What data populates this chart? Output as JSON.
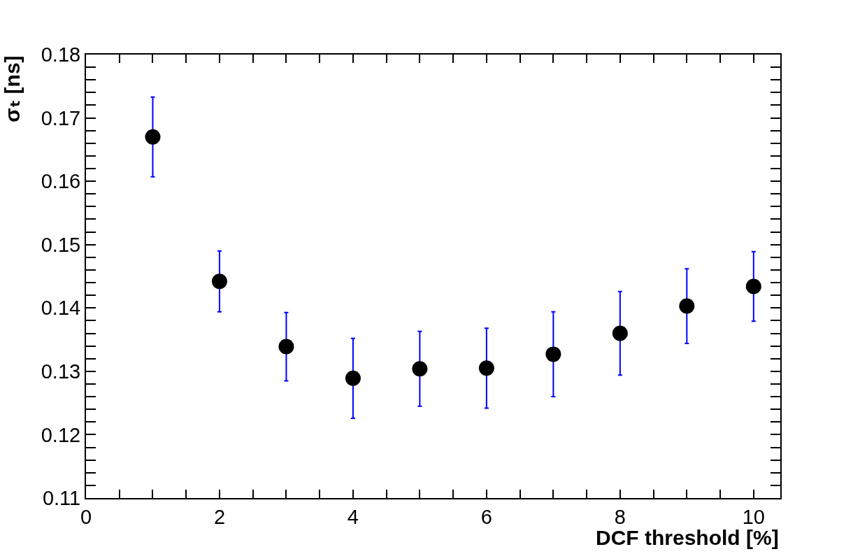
{
  "chart_data": {
    "type": "scatter",
    "xlabel": "DCF threshold [%]",
    "ylabel": "σₜ [ns]",
    "x": [
      1,
      2,
      3,
      4,
      5,
      6,
      7,
      8,
      9,
      10
    ],
    "values": [
      0.167,
      0.1442,
      0.1339,
      0.1289,
      0.1304,
      0.1305,
      0.1327,
      0.136,
      0.1403,
      0.1434
    ],
    "errors": [
      0.0063,
      0.0048,
      0.0054,
      0.0063,
      0.0059,
      0.0063,
      0.0067,
      0.0066,
      0.0059,
      0.0055
    ],
    "color": "#000000",
    "marker": "circle",
    "xlim": [
      0,
      10.4
    ],
    "xticks": [
      0,
      {
        "value": 0.5,
        "label": null
      },
      {
        "value": 1,
        "label": null
      },
      {
        "value": 1.5,
        "label": null
      },
      2,
      {
        "value": 2.5,
        "label": null
      },
      {
        "value": 3,
        "label": null
      },
      {
        "value": 3.5,
        "label": null
      },
      4,
      {
        "value": 4.5,
        "label": null
      },
      {
        "value": 5,
        "label": null
      },
      {
        "value": 5.5,
        "label": null
      },
      6,
      {
        "value": 6.5,
        "label": null
      },
      {
        "value": 7,
        "label": null
      },
      {
        "value": 7.5,
        "label": null
      },
      8,
      {
        "value": 8.5,
        "label": null
      },
      {
        "value": 9,
        "label": null
      },
      {
        "value": 9.5,
        "label": null
      },
      10
    ],
    "ylim": [
      0.11,
      0.18
    ],
    "yticks": [
      0.11,
      {
        "value": 0.112,
        "label": null
      },
      {
        "value": 0.114,
        "label": null
      },
      {
        "value": 0.116,
        "label": null
      },
      {
        "value": 0.118,
        "label": null
      },
      0.12,
      {
        "value": 0.122,
        "label": null
      },
      {
        "value": 0.124,
        "label": null
      },
      {
        "value": 0.126,
        "label": null
      },
      {
        "value": 0.128,
        "label": null
      },
      0.13,
      {
        "value": 0.132,
        "label": null
      },
      {
        "value": 0.134,
        "label": null
      },
      {
        "value": 0.136,
        "label": null
      },
      {
        "value": 0.138,
        "label": null
      },
      0.14,
      {
        "value": 0.142,
        "label": null
      },
      {
        "value": 0.144,
        "label": null
      },
      {
        "value": 0.146,
        "label": null
      },
      {
        "value": 0.148,
        "label": null
      },
      0.15,
      {
        "value": 0.152,
        "label": null
      },
      {
        "value": 0.154,
        "label": null
      },
      {
        "value": 0.156,
        "label": null
      },
      {
        "value": 0.158,
        "label": null
      },
      0.16,
      {
        "value": 0.162,
        "label": null
      },
      {
        "value": 0.164,
        "label": null
      },
      {
        "value": 0.166,
        "label": null
      },
      {
        "value": 0.168,
        "label": null
      },
      0.17,
      {
        "value": 0.172,
        "label": null
      },
      {
        "value": 0.174,
        "label": null
      },
      {
        "value": 0.176,
        "label": null
      },
      {
        "value": 0.178,
        "label": null
      },
      0.18
    ]
  }
}
